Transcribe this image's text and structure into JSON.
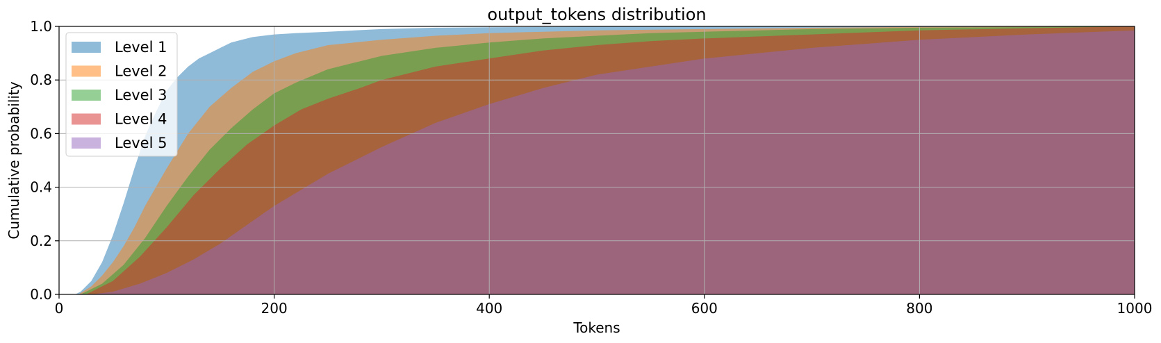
{
  "chart_data": {
    "type": "area",
    "title": "output_tokens distribution",
    "xlabel": "Tokens",
    "ylabel": "Cumulative probability",
    "xlim": [
      0,
      1000
    ],
    "ylim": [
      0,
      1.0
    ],
    "xticks": [
      0,
      200,
      400,
      600,
      800,
      1000
    ],
    "yticks": [
      0.0,
      0.2,
      0.4,
      0.6,
      0.8,
      1.0
    ],
    "xtick_labels": [
      "0",
      "200",
      "400",
      "600",
      "800",
      "1000"
    ],
    "ytick_labels": [
      "0.0",
      "0.2",
      "0.4",
      "0.6",
      "0.8",
      "1.0"
    ],
    "grid": true,
    "legend_position": "top-left",
    "cumulative": true,
    "series": [
      {
        "name": "Level 1",
        "color": "#1f77b4",
        "x": [
          15,
          20,
          30,
          40,
          50,
          60,
          70,
          80,
          90,
          100,
          110,
          120,
          130,
          140,
          150,
          160,
          170,
          180,
          200,
          220,
          250,
          300,
          350,
          400,
          500,
          600,
          1000
        ],
        "y": [
          0.0,
          0.01,
          0.05,
          0.12,
          0.22,
          0.34,
          0.47,
          0.59,
          0.68,
          0.76,
          0.81,
          0.85,
          0.88,
          0.9,
          0.92,
          0.94,
          0.95,
          0.96,
          0.97,
          0.975,
          0.98,
          0.99,
          0.995,
          0.997,
          0.999,
          1.0,
          1.0
        ]
      },
      {
        "name": "Level 2",
        "color": "#ff7f0e",
        "x": [
          18,
          30,
          40,
          50,
          60,
          70,
          80,
          90,
          100,
          120,
          140,
          160,
          180,
          200,
          220,
          250,
          300,
          350,
          400,
          450,
          500,
          600,
          700,
          800,
          1000
        ],
        "y": [
          0.0,
          0.03,
          0.07,
          0.12,
          0.18,
          0.25,
          0.33,
          0.4,
          0.47,
          0.6,
          0.7,
          0.77,
          0.83,
          0.87,
          0.9,
          0.93,
          0.95,
          0.965,
          0.975,
          0.98,
          0.985,
          0.99,
          0.995,
          0.998,
          1.0
        ]
      },
      {
        "name": "Level 3",
        "color": "#2ca02c",
        "x": [
          20,
          40,
          60,
          80,
          100,
          120,
          140,
          160,
          180,
          200,
          220,
          250,
          280,
          300,
          350,
          400,
          450,
          500,
          550,
          600,
          700,
          800,
          1000
        ],
        "y": [
          0.0,
          0.04,
          0.11,
          0.21,
          0.33,
          0.44,
          0.54,
          0.62,
          0.69,
          0.75,
          0.79,
          0.84,
          0.87,
          0.89,
          0.92,
          0.94,
          0.955,
          0.965,
          0.975,
          0.98,
          0.99,
          0.995,
          1.0
        ]
      },
      {
        "name": "Level 4",
        "color": "#d62728",
        "x": [
          25,
          50,
          75,
          100,
          125,
          150,
          175,
          200,
          225,
          250,
          280,
          300,
          350,
          400,
          450,
          500,
          550,
          600,
          700,
          800,
          900,
          1000
        ],
        "y": [
          0.0,
          0.05,
          0.14,
          0.25,
          0.37,
          0.47,
          0.56,
          0.63,
          0.69,
          0.73,
          0.77,
          0.8,
          0.85,
          0.88,
          0.91,
          0.93,
          0.945,
          0.955,
          0.97,
          0.985,
          0.993,
          1.0
        ]
      },
      {
        "name": "Level 5",
        "color": "#9467bd",
        "x": [
          30,
          50,
          75,
          100,
          125,
          150,
          175,
          200,
          225,
          250,
          300,
          350,
          400,
          450,
          500,
          550,
          600,
          650,
          700,
          800,
          900,
          1000
        ],
        "y": [
          0.0,
          0.01,
          0.04,
          0.08,
          0.13,
          0.19,
          0.26,
          0.33,
          0.39,
          0.45,
          0.55,
          0.64,
          0.71,
          0.77,
          0.82,
          0.85,
          0.88,
          0.9,
          0.92,
          0.95,
          0.97,
          0.985
        ]
      }
    ]
  }
}
